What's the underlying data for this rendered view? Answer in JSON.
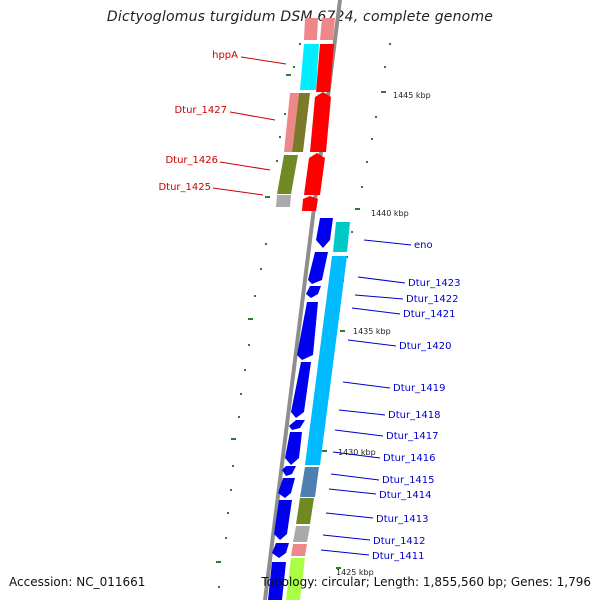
{
  "title": "Dictyoglomus turgidum DSM 6724, complete genome",
  "footer": {
    "accession": "Accession: NC_011661",
    "topology": "Topology: circular; Length: 1,855,560 bp; Genes: 1,796"
  },
  "colors": {
    "backbone": "#8e8e8e",
    "forward_label": "#cc0000",
    "reverse_label": "#0000cc",
    "tick": "#2e7d2e"
  },
  "scale_labels": [
    "1445 kbp",
    "1440 kbp",
    "1435 kbp",
    "1430 kbp",
    "1425 kbp"
  ],
  "red_labels": [
    "hppA",
    "Dtur_1427",
    "Dtur_1426",
    "Dtur_1425"
  ],
  "blue_labels": [
    "eno",
    "Dtur_1423",
    "Dtur_1422",
    "Dtur_1421",
    "Dtur_1420",
    "Dtur_1419",
    "Dtur_1418",
    "Dtur_1417",
    "Dtur_1416",
    "Dtur_1415",
    "Dtur_1414",
    "Dtur_1413",
    "Dtur_1412",
    "Dtur_1411"
  ]
}
